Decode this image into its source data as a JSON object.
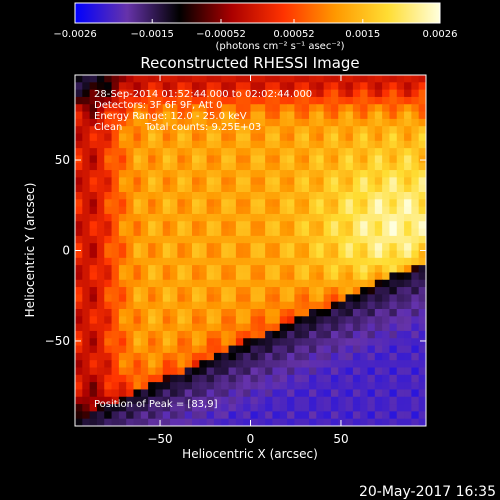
{
  "chart_data": {
    "type": "heatmap",
    "title": "Reconstructed RHESSI Image",
    "xlabel": "Heliocentric X (arcsec)",
    "ylabel": "Heliocentric Y (arcsec)",
    "xlim": [
      -97,
      97
    ],
    "ylim": [
      -97,
      97
    ],
    "x_ticks": [
      -50,
      0,
      50
    ],
    "y_ticks": [
      50,
      0,
      -50
    ],
    "x_tick_labels": [
      "−50",
      "0",
      "50"
    ],
    "y_tick_labels": [
      "50",
      "0",
      "−50"
    ],
    "colorbar": {
      "tick_values": [
        -0.0026,
        -0.0015,
        -0.00052,
        0.00052,
        0.0015,
        0.0026
      ],
      "tick_labels": [
        "−0.0026",
        "−0.0015",
        "−0.00052",
        "0.00052",
        "0.0015",
        "0.0026"
      ],
      "units_label": "(photons cm⁻² s⁻¹ asec⁻²)",
      "range": [
        -0.0026,
        0.0026
      ],
      "colors": [
        "#0000ff",
        "#6633aa",
        "#000000",
        "#aa0000",
        "#ff3300",
        "#ff9900",
        "#ffdd33",
        "#ffffdd"
      ]
    },
    "annotations": {
      "time_range": "28-Sep-2014 01:52:44.000 to 02:02:44.000",
      "detectors": "Detectors: 3F 6F 9F, Att 0",
      "energy_range": "Energy Range: 12.0 - 25.0 keV",
      "method": "Clean",
      "total_counts": "Total counts: 9.25E+03",
      "peak_position": "Position of Peak = [83,9]"
    },
    "peak": [
      83,
      9
    ],
    "grid": false
  },
  "footer": {
    "date": "20-May-2017 16:35"
  }
}
